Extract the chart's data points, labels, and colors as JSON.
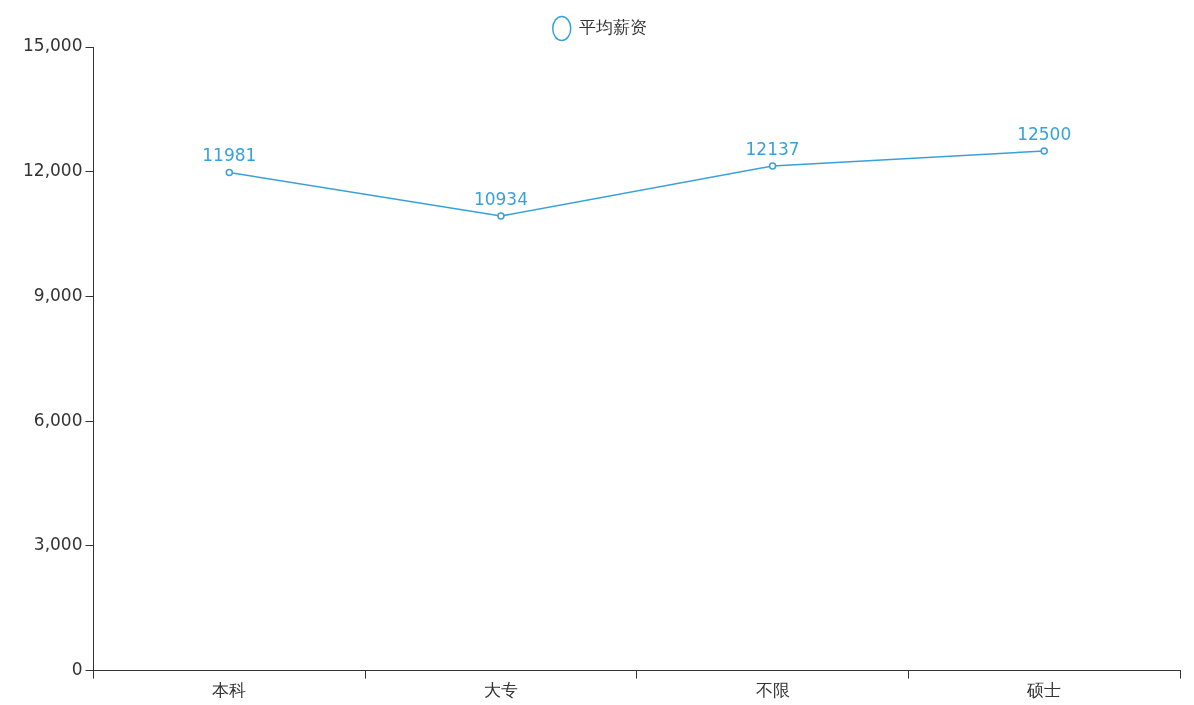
{
  "chart_data": {
    "type": "line",
    "categories": [
      "本科",
      "大专",
      "不限",
      "硕士"
    ],
    "series": [
      {
        "name": "平均薪资",
        "color": "#37a2da",
        "values": [
          11981,
          10934,
          12137,
          12500
        ]
      }
    ],
    "ylim": [
      0,
      15000
    ],
    "yticks": [
      {
        "value": 0,
        "label": "0"
      },
      {
        "value": 3000,
        "label": "3,000"
      },
      {
        "value": 6000,
        "label": "6,000"
      },
      {
        "value": 9000,
        "label": "9,000"
      },
      {
        "value": 12000,
        "label": "12,000"
      },
      {
        "value": 15000,
        "label": "15,000"
      }
    ],
    "grid": false,
    "legend": "top",
    "marker": "circle",
    "line_style": "solid",
    "data_labels": true
  }
}
